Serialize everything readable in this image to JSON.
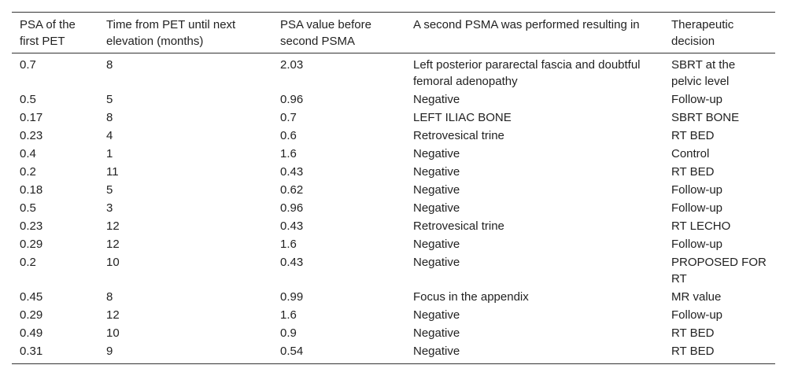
{
  "table": {
    "header": [
      "PSA of the first PET",
      "Time from PET until next elevation (months)",
      "PSA value before second PSMA",
      "A second PSMA was performed resulting in",
      "Therapeutic decision"
    ],
    "rows": [
      [
        "0.7",
        "8",
        "2.03",
        "Left posterior pararectal fascia and doubtful femoral adenopathy",
        "SBRT at the pelvic level"
      ],
      [
        "0.5",
        "5",
        "0.96",
        "Negative",
        "Follow-up"
      ],
      [
        "0.17",
        "8",
        "0.7",
        "LEFT ILIAC BONE",
        "SBRT BONE"
      ],
      [
        "0.23",
        "4",
        "0.6",
        "Retrovesical trine",
        "RT BED"
      ],
      [
        "0.4",
        "1",
        "1.6",
        "Negative",
        "Control"
      ],
      [
        "0.2",
        "11",
        "0.43",
        "Negative",
        "RT BED"
      ],
      [
        "0.18",
        "5",
        "0.62",
        "Negative",
        "Follow-up"
      ],
      [
        "0.5",
        "3",
        "0.96",
        "Negative",
        "Follow-up"
      ],
      [
        "0.23",
        "12",
        "0.43",
        "Retrovesical trine",
        "RT LECHO"
      ],
      [
        "0.29",
        "12",
        "1.6",
        "Negative",
        "Follow-up"
      ],
      [
        "0.2",
        "10",
        "0.43",
        "Negative",
        "PROPOSED FOR RT"
      ],
      [
        "0.45",
        "8",
        "0.99",
        "Focus in the appendix",
        "MR value"
      ],
      [
        "0.29",
        "12",
        "1.6",
        "Negative",
        "Follow-up"
      ],
      [
        "0.49",
        "10",
        "0.9",
        "Negative",
        "RT BED"
      ],
      [
        "0.31",
        "9",
        "0.54",
        "Negative",
        "RT BED"
      ]
    ]
  }
}
